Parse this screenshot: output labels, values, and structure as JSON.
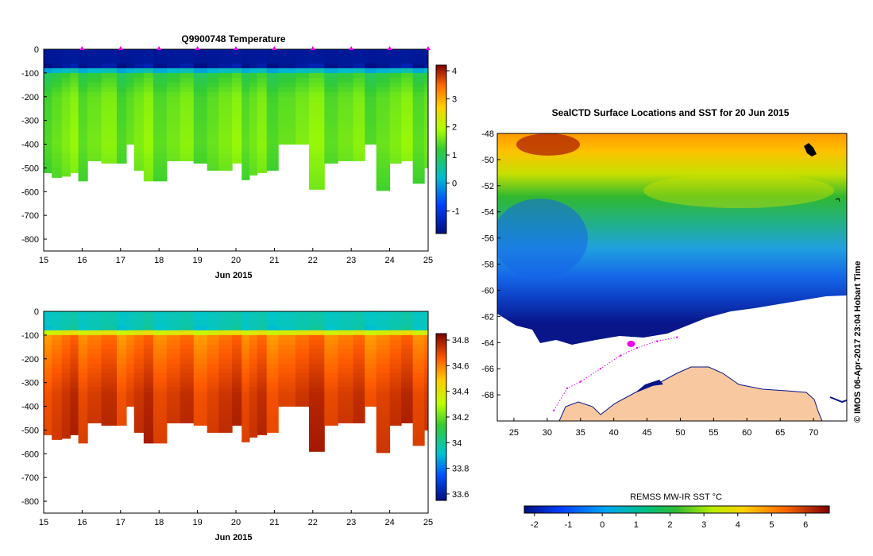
{
  "chart_data": [
    {
      "type": "heatmap",
      "title": "Q9900748  Temperature",
      "variable": "temperature",
      "xlabel": "Jun 2015",
      "x_ticks": [
        "15",
        "16",
        "17",
        "18",
        "19",
        "20",
        "21",
        "22",
        "23",
        "24",
        "25"
      ],
      "xlim": [
        15,
        25
      ],
      "y_ticks": [
        "0",
        "-100",
        "-200",
        "-300",
        "-400",
        "-500",
        "-600",
        "-700",
        "-800"
      ],
      "ylim": [
        -850,
        0
      ],
      "colorbar_ticks": [
        "4",
        "3",
        "2",
        "1",
        "0",
        "-1"
      ],
      "colorbar_range": [
        -1.8,
        4.2
      ],
      "profile_days": [
        15.0,
        15.21,
        15.47,
        15.69,
        15.9,
        16.14,
        16.5,
        16.9,
        17.15,
        17.35,
        17.6,
        17.85,
        18.2,
        18.55,
        18.9,
        19.25,
        19.55,
        19.9,
        20.15,
        20.35,
        20.55,
        20.8,
        21.1,
        21.55,
        21.9,
        22.3,
        22.65,
        23.05,
        23.35,
        23.65,
        24.0,
        24.3,
        24.6,
        24.9
      ],
      "profile_max_depth_m": [
        520,
        540,
        535,
        520,
        555,
        470,
        480,
        480,
        400,
        510,
        555,
        555,
        470,
        470,
        480,
        510,
        510,
        480,
        550,
        530,
        520,
        510,
        400,
        400,
        590,
        480,
        470,
        470,
        400,
        595,
        480,
        470,
        565,
        500
      ],
      "surface_markers_days": [
        16,
        17,
        18,
        19,
        20,
        21,
        22,
        23,
        24,
        25
      ],
      "layers": [
        {
          "depth_m": 70,
          "value": -1.6
        },
        {
          "depth_m": 100,
          "value": 1.1
        },
        {
          "depth_m": 200,
          "value": 1.5
        },
        {
          "depth_m": 400,
          "value": 1.6
        },
        {
          "depth_m": 600,
          "value": 1.35
        }
      ]
    },
    {
      "type": "heatmap",
      "title": "",
      "variable": "salinity",
      "xlabel": "Jun 2015",
      "x_ticks": [
        "15",
        "16",
        "17",
        "18",
        "19",
        "20",
        "21",
        "22",
        "23",
        "24",
        "25"
      ],
      "xlim": [
        15,
        25
      ],
      "y_ticks": [
        "0",
        "-100",
        "-200",
        "-300",
        "-400",
        "-500",
        "-600",
        "-700",
        "-800"
      ],
      "ylim": [
        -850,
        0
      ],
      "colorbar_ticks": [
        "34.8",
        "34.6",
        "34.4",
        "34.2",
        "34",
        "33.8",
        "33.6"
      ],
      "colorbar_range": [
        33.55,
        34.85
      ],
      "layers": [
        {
          "depth_m": 70,
          "value": 33.95
        },
        {
          "depth_m": 100,
          "value": 34.6
        },
        {
          "depth_m": 200,
          "value": 34.65
        },
        {
          "depth_m": 350,
          "value": 34.72
        },
        {
          "depth_m": 600,
          "value": 34.75
        }
      ]
    },
    {
      "type": "heatmap",
      "title": "SealCTD Surface Locations and SST for 20 Jun 2015",
      "x_ticks": [
        "25",
        "30",
        "35",
        "40",
        "45",
        "50",
        "55",
        "60",
        "65",
        "70"
      ],
      "xlim": [
        22.5,
        75
      ],
      "y_ticks": [
        "-48",
        "-50",
        "-52",
        "-54",
        "-56",
        "-58",
        "-60",
        "-62",
        "-64",
        "-66",
        "-68"
      ],
      "ylim": [
        -70,
        -48
      ],
      "colorbar_label": "REMSS MW-IR SST °C",
      "colorbar_ticks": [
        "-2",
        "-1",
        "0",
        "1",
        "2",
        "3",
        "4",
        "5",
        "6"
      ],
      "colorbar_range": [
        -2.3,
        6.7
      ],
      "current_location": {
        "lon": 42.6,
        "lat": -64.1
      },
      "track": [
        [
          31,
          -69.2
        ],
        [
          33,
          -67.5
        ],
        [
          35,
          -67.0
        ],
        [
          38,
          -66.0
        ],
        [
          41,
          -65.0
        ],
        [
          43.5,
          -64.4
        ],
        [
          46.5,
          -63.9
        ],
        [
          49.5,
          -63.6
        ]
      ],
      "credit": "© IMOS 06-Apr-2017 23:04 Hobart Time"
    }
  ]
}
